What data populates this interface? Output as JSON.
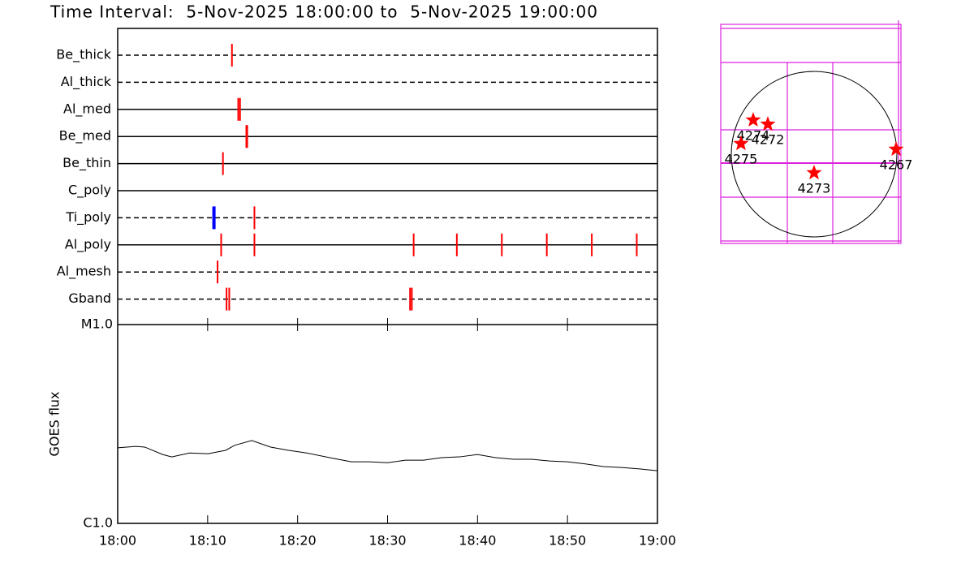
{
  "title": "Time Interval:  5-Nov-2025 18:00:00 to  5-Nov-2025 19:00:00",
  "chart_data": [
    {
      "type": "timeline",
      "xlim": [
        0,
        60
      ],
      "series": [
        {
          "name": "Be_thick",
          "line": "dashed",
          "x": [
            12.7
          ],
          "colors": [
            "#ff0000"
          ]
        },
        {
          "name": "Al_thick",
          "line": "dashed",
          "x": [],
          "colors": []
        },
        {
          "name": "Al_med",
          "line": "solid",
          "x": [
            13.4,
            13.6
          ],
          "colors": [
            "#ff0000",
            "#ff0000"
          ]
        },
        {
          "name": "Be_med",
          "line": "solid",
          "x": [
            14.3,
            14.4
          ],
          "colors": [
            "#ff0000",
            "#ff0000"
          ]
        },
        {
          "name": "Be_thin",
          "line": "solid",
          "x": [
            11.7
          ],
          "colors": [
            "#ff0000"
          ]
        },
        {
          "name": "C_poly",
          "line": "solid",
          "x": [],
          "colors": []
        },
        {
          "name": "Ti_poly",
          "line": "dashed",
          "x": [
            10.7,
            15.2
          ],
          "colors": [
            "#0000ff",
            "#ff0000"
          ]
        },
        {
          "name": "Al_poly",
          "line": "solid",
          "x": [
            11.5,
            15.2,
            32.9,
            37.7,
            42.7,
            47.7,
            52.7,
            57.7
          ],
          "colors": [
            "#ff0000",
            "#ff0000",
            "#ff0000",
            "#ff0000",
            "#ff0000",
            "#ff0000",
            "#ff0000",
            "#ff0000"
          ]
        },
        {
          "name": "Al_mesh",
          "line": "dashed",
          "x": [
            11.1
          ],
          "colors": [
            "#ff0000"
          ]
        },
        {
          "name": "Gband",
          "line": "dashed",
          "x": [
            12.1,
            12.4,
            32.5,
            32.7
          ],
          "colors": [
            "#ff0000",
            "#ff0000",
            "#ff0000",
            "#ff0000"
          ]
        }
      ]
    },
    {
      "type": "line",
      "ylabel": "GOES flux",
      "log": true,
      "xlim": [
        0,
        60
      ],
      "xticks": [
        {
          "value": 0,
          "label": "18:00"
        },
        {
          "value": 10,
          "label": "18:10"
        },
        {
          "value": 20,
          "label": "18:20"
        },
        {
          "value": 30,
          "label": "18:30"
        },
        {
          "value": 40,
          "label": "18:40"
        },
        {
          "value": 50,
          "label": "18:50"
        },
        {
          "value": 60,
          "label": "19:00"
        }
      ],
      "ylim": [
        1e-06,
        1e-05
      ],
      "yticks": [
        {
          "value": 1e-06,
          "label": "C1.0"
        },
        {
          "value": 1e-05,
          "label": "M1.0"
        }
      ],
      "series": [
        {
          "color": "#000000",
          "x": [
            0,
            2,
            3,
            5,
            6,
            8,
            10,
            12,
            13,
            14.9,
            17,
            19,
            21,
            24,
            26,
            28,
            30,
            32,
            34,
            36,
            38,
            40,
            42,
            44,
            46,
            48,
            50,
            52,
            54,
            56,
            58,
            60
          ],
          "values": [
            2.4e-06,
            2.44e-06,
            2.42e-06,
            2.22e-06,
            2.16e-06,
            2.26e-06,
            2.24e-06,
            2.33e-06,
            2.47e-06,
            2.61e-06,
            2.42e-06,
            2.33e-06,
            2.26e-06,
            2.12e-06,
            2.04e-06,
            2.04e-06,
            2.02e-06,
            2.08e-06,
            2.08e-06,
            2.14e-06,
            2.16e-06,
            2.22e-06,
            2.14e-06,
            2.1e-06,
            2.1e-06,
            2.06e-06,
            2.04e-06,
            1.99e-06,
            1.93e-06,
            1.91e-06,
            1.88e-06,
            1.84e-06
          ]
        }
      ]
    },
    {
      "type": "scatter",
      "xlim": [
        -1099,
        1023
      ],
      "ylim": [
        -1052,
        1530
      ],
      "color": "#ff0000",
      "labels": [
        "4274",
        "4272",
        "4275",
        "4267",
        "4273"
      ],
      "x": [
        -717,
        -545,
        -861,
        966,
        0
      ],
      "values": [
        402,
        353,
        124,
        57,
        -220
      ]
    }
  ]
}
